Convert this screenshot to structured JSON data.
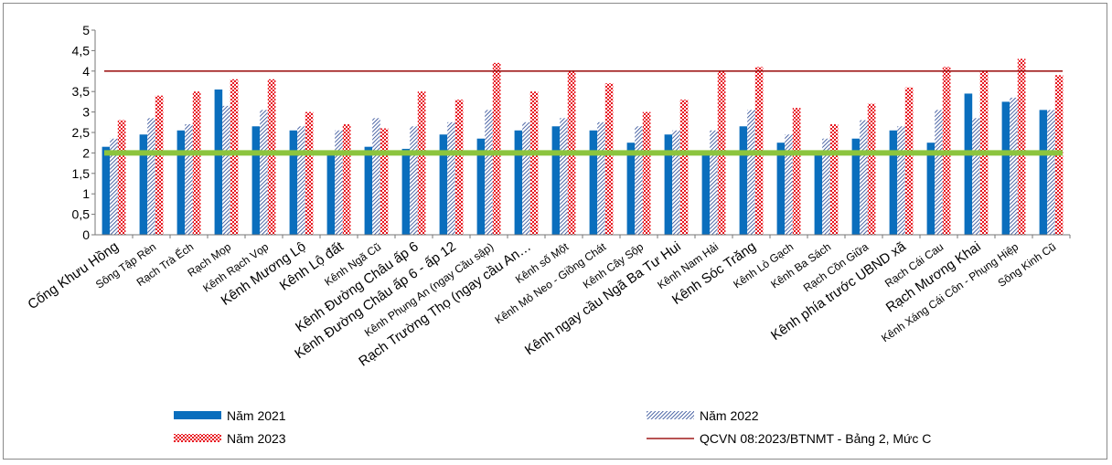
{
  "chart_data": {
    "type": "bar",
    "ylim": [
      0,
      5
    ],
    "yticks": [
      "0",
      "0,5",
      "1",
      "1,5",
      "2",
      "2,5",
      "3",
      "3,5",
      "4",
      "4,5",
      "5"
    ],
    "ytick_values": [
      0,
      0.5,
      1,
      1.5,
      2,
      2.5,
      3,
      3.5,
      4,
      4.5,
      5
    ],
    "categories": [
      "Cống Khưu Hồng",
      "Sông Tập Rèn",
      "Rạch Trà Ếch",
      "Rạch Mọp",
      "Kênh Rạch Vọp",
      "Kênh Mương Lộ",
      "Kênh Lộ đất",
      "Kênh Ngã Cũ",
      "Kênh Đường Châu ấp 6",
      "Kênh Đường Châu ấp 6 - ấp 12",
      "Kênh Phụng An (ngay Cầu sập)",
      "Rạch Trường Thọ (ngay cầu An…",
      "Kênh số Một",
      "Kênh Mỏ Neo - Giồng Chát",
      "Kênh Cây Sộp",
      "Kênh ngay cầu Ngã Ba Tư Hui",
      "Kênh Nam Hải",
      "Kênh Sóc Trăng",
      "Kênh Lò Gạch",
      "Kênh Ba Sách",
      "Rạch Cồn Giữa",
      "Kênh phía trước UBND xã",
      "Rạch Cái Cau",
      "Rạch Mương Khai",
      "Kênh Xáng Cái Côn - Phụng Hiệp",
      "Sông Kinh Cũ"
    ],
    "label_sizes": [
      "l",
      "s",
      "s",
      "s",
      "s",
      "l",
      "l",
      "s",
      "l",
      "l",
      "s",
      "l",
      "s",
      "s",
      "s",
      "l",
      "s",
      "l",
      "s",
      "s",
      "s",
      "l",
      "s",
      "l",
      "s",
      "s"
    ],
    "series": [
      {
        "name": "Năm 2021",
        "color": "#0a6ebd",
        "pattern": "solid",
        "values": [
          2.15,
          2.45,
          2.55,
          3.55,
          2.65,
          2.55,
          2.0,
          2.15,
          2.1,
          2.45,
          2.35,
          2.55,
          2.65,
          2.55,
          2.25,
          2.45,
          2.0,
          2.65,
          2.25,
          2.0,
          2.35,
          2.55,
          2.25,
          3.45,
          3.25,
          3.05
        ]
      },
      {
        "name": "Năm 2022",
        "color": "#1f3f8f",
        "pattern": "diagonal-hatch",
        "values": [
          2.35,
          2.85,
          2.7,
          3.15,
          3.05,
          2.65,
          2.55,
          2.85,
          2.65,
          2.75,
          3.05,
          2.75,
          2.85,
          2.75,
          2.65,
          2.55,
          2.55,
          3.05,
          2.45,
          2.35,
          2.8,
          2.65,
          3.05,
          2.85,
          3.35,
          3.05
        ]
      },
      {
        "name": "Năm 2023",
        "color": "#e8141e",
        "pattern": "checker",
        "values": [
          2.8,
          3.4,
          3.5,
          3.8,
          3.8,
          3.0,
          2.7,
          2.6,
          3.5,
          3.3,
          4.2,
          3.5,
          4.0,
          3.7,
          3.0,
          3.3,
          4.0,
          4.1,
          3.1,
          2.7,
          3.2,
          3.6,
          4.1,
          4.0,
          4.3,
          3.9
        ]
      }
    ],
    "reference_lines": [
      {
        "name": "QCVN 08:2023/BTNMT - Bảng 2, Mức C",
        "value": 4.0,
        "color": "#a01a1a"
      },
      {
        "name": "",
        "value": 2.0,
        "color": "#8cc43e"
      }
    ],
    "legend": [
      {
        "label": "Năm 2021",
        "kind": "solid"
      },
      {
        "label": "Năm 2022",
        "kind": "diagonal-hatch"
      },
      {
        "label": "Năm 2023",
        "kind": "checker"
      },
      {
        "label": "QCVN 08:2023/BTNMT - Bảng 2, Mức C",
        "kind": "line"
      }
    ],
    "legend_placement": "bottom",
    "grid": false
  }
}
